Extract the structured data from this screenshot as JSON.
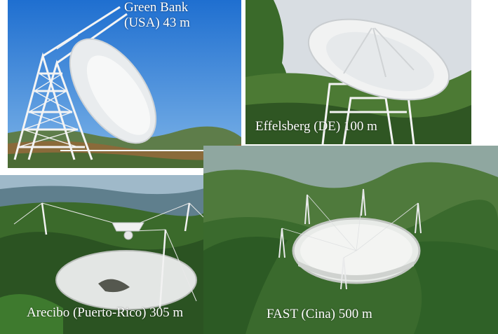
{
  "telescopes": [
    {
      "id": "green-bank",
      "name_line1": "Green Bank",
      "name_line2": "(USA) 43 m"
    },
    {
      "id": "effelsberg",
      "caption": "Effelsberg (DE) 100 m"
    },
    {
      "id": "arecibo",
      "caption": "Arecibo (Puerto-Rico) 305 m"
    },
    {
      "id": "fast",
      "caption": "FAST (Cina) 500 m"
    }
  ],
  "colors": {
    "sky_blue": "#2f86d8",
    "sky_cloud": "#d8dde2",
    "vegetation": "#3f6f2e",
    "vegetation_dark": "#2a4d22",
    "dish_white": "#eef0ee",
    "structure_white": "#f4f4f4",
    "caption_text": "#ffffff"
  }
}
